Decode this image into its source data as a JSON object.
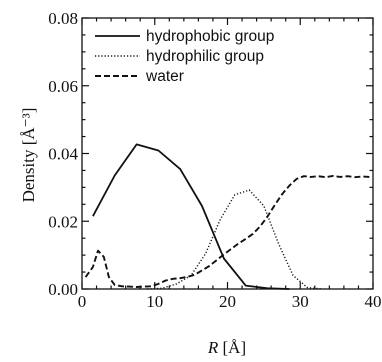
{
  "chart_data": {
    "type": "line",
    "title": "",
    "xlabel_var": "R",
    "xlabel_unit": "[Å]",
    "ylabel": "Density [Å⁻³]",
    "xlim": [
      0,
      40
    ],
    "ylim": [
      0,
      0.08
    ],
    "xticks": [
      0,
      10,
      20,
      30,
      40
    ],
    "xtick_labels": [
      "0",
      "10",
      "20",
      "30",
      "40"
    ],
    "yticks": [
      0,
      0.02,
      0.04,
      0.06,
      0.08
    ],
    "ytick_labels": [
      "0.00",
      "0.02",
      "0.04",
      "0.06",
      "0.08"
    ],
    "grid": false,
    "legend_position": "top-left",
    "series": [
      {
        "name": "hydrophobic group",
        "style": "solid",
        "color": "#111111",
        "x": [
          1.5,
          4.5,
          7.5,
          10.5,
          13.5,
          16.5,
          19.5,
          22.5,
          25.5,
          28.5
        ],
        "y": [
          0.0215,
          0.0335,
          0.0427,
          0.0409,
          0.0354,
          0.0245,
          0.009,
          0.001,
          0.0002,
          0.0
        ]
      },
      {
        "name": "hydrophilic group",
        "style": "dotted",
        "color": "#111111",
        "x": [
          9,
          11,
          13,
          15,
          17,
          19,
          21,
          23,
          25,
          27,
          29,
          31,
          33
        ],
        "y": [
          0.0,
          0.0002,
          0.0015,
          0.004,
          0.0105,
          0.0205,
          0.0278,
          0.0292,
          0.0245,
          0.0135,
          0.004,
          0.0004,
          0.0
        ]
      },
      {
        "name": "water",
        "style": "dashed",
        "color": "#111111",
        "x": [
          0.5,
          1.5,
          2.2,
          3.0,
          3.7,
          4.5,
          5.5,
          6.5,
          7.5,
          8.5,
          9.5,
          10.5,
          11.5,
          12.5,
          13.5,
          14.5,
          15.5,
          16.5,
          17.5,
          18.5,
          19.5,
          20.5,
          21.5,
          22.5,
          23.5,
          24.5,
          25.5,
          26.5,
          27.5,
          28.5,
          29.5,
          30.5,
          31.5,
          32.5,
          33.5,
          34.5,
          35.5,
          36.5,
          37.5,
          38.5,
          39.5
        ],
        "y": [
          0.0035,
          0.0065,
          0.0113,
          0.0095,
          0.0035,
          0.0012,
          0.0008,
          0.0007,
          0.0006,
          0.0007,
          0.0008,
          0.0015,
          0.0025,
          0.003,
          0.0032,
          0.0036,
          0.0042,
          0.0055,
          0.0068,
          0.0085,
          0.0102,
          0.0118,
          0.0134,
          0.0148,
          0.0163,
          0.0185,
          0.0214,
          0.0248,
          0.028,
          0.0305,
          0.0325,
          0.0333,
          0.0331,
          0.0333,
          0.033,
          0.0334,
          0.0331,
          0.0333,
          0.033,
          0.0332,
          0.0331
        ]
      }
    ]
  }
}
